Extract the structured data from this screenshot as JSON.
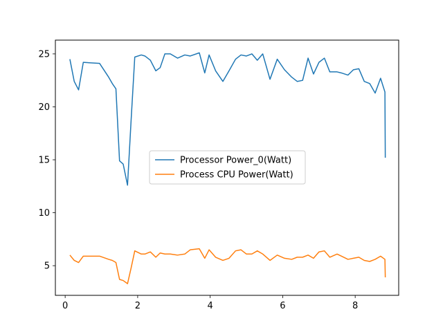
{
  "chart_data": {
    "type": "line",
    "title": "",
    "xlabel": "",
    "ylabel": "",
    "xlim": [
      -0.27,
      9.2
    ],
    "ylim": [
      2.2,
      26.3
    ],
    "xticks": [
      0,
      2,
      4,
      6,
      8
    ],
    "yticks": [
      5,
      10,
      15,
      20,
      25
    ],
    "grid": false,
    "legend_position": "center",
    "series": [
      {
        "name": "Processor Power_0(Watt)",
        "color": "#1f77b4",
        "x": [
          0.13,
          0.25,
          0.37,
          0.5,
          0.95,
          1.2,
          1.3,
          1.4,
          1.5,
          1.6,
          1.72,
          1.82,
          1.92,
          2.1,
          2.2,
          2.35,
          2.5,
          2.62,
          2.75,
          2.9,
          3.1,
          3.3,
          3.45,
          3.7,
          3.85,
          3.97,
          4.15,
          4.35,
          4.52,
          4.7,
          4.85,
          5.0,
          5.15,
          5.3,
          5.45,
          5.65,
          5.85,
          6.05,
          6.25,
          6.4,
          6.55,
          6.7,
          6.85,
          7.0,
          7.15,
          7.3,
          7.5,
          7.62,
          7.8,
          7.95,
          8.1,
          8.25,
          8.4,
          8.55,
          8.7,
          8.82,
          8.83
        ],
        "y": [
          24.5,
          22.4,
          21.6,
          24.2,
          24.1,
          22.8,
          22.2,
          21.7,
          14.9,
          14.6,
          12.6,
          18.8,
          24.7,
          24.9,
          24.8,
          24.4,
          23.4,
          23.7,
          25.0,
          25.0,
          24.6,
          24.9,
          24.8,
          25.1,
          23.2,
          24.9,
          23.4,
          22.4,
          23.4,
          24.5,
          24.9,
          24.8,
          25.0,
          24.4,
          25.0,
          22.6,
          24.5,
          23.5,
          22.8,
          22.4,
          22.5,
          24.6,
          23.1,
          24.2,
          24.6,
          23.3,
          23.3,
          23.2,
          23.0,
          23.5,
          23.6,
          22.4,
          22.2,
          21.3,
          22.7,
          21.4,
          15.2
        ]
      },
      {
        "name": "Process CPU Power(Watt)",
        "color": "#ff7f0e",
        "x": [
          0.13,
          0.25,
          0.37,
          0.5,
          0.95,
          1.2,
          1.3,
          1.4,
          1.5,
          1.6,
          1.72,
          1.82,
          1.92,
          2.1,
          2.2,
          2.35,
          2.5,
          2.62,
          2.75,
          2.9,
          3.1,
          3.3,
          3.45,
          3.7,
          3.85,
          3.97,
          4.15,
          4.35,
          4.52,
          4.7,
          4.85,
          5.0,
          5.15,
          5.3,
          5.45,
          5.65,
          5.85,
          6.05,
          6.25,
          6.4,
          6.55,
          6.7,
          6.85,
          7.0,
          7.15,
          7.3,
          7.5,
          7.62,
          7.8,
          7.95,
          8.1,
          8.25,
          8.4,
          8.55,
          8.7,
          8.82,
          8.83
        ],
        "y": [
          6.0,
          5.5,
          5.3,
          5.9,
          5.9,
          5.6,
          5.5,
          5.3,
          3.7,
          3.6,
          3.3,
          4.8,
          6.4,
          6.1,
          6.1,
          6.3,
          5.8,
          6.2,
          6.1,
          6.1,
          6.0,
          6.1,
          6.5,
          6.6,
          5.7,
          6.5,
          5.8,
          5.5,
          5.7,
          6.4,
          6.5,
          6.1,
          6.1,
          6.4,
          6.1,
          5.5,
          6.0,
          5.7,
          5.6,
          5.8,
          5.8,
          6.0,
          5.7,
          6.3,
          6.4,
          5.8,
          6.1,
          5.9,
          5.6,
          5.7,
          5.8,
          5.5,
          5.4,
          5.6,
          5.9,
          5.6,
          3.9
        ]
      }
    ]
  }
}
